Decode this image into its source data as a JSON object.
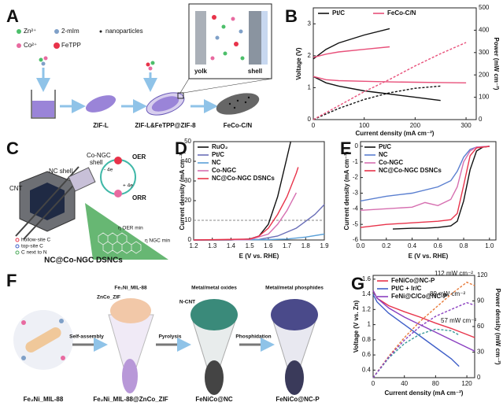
{
  "panel_labels": [
    "A",
    "B",
    "C",
    "D",
    "E",
    "F",
    "G"
  ],
  "panel_a": {
    "legend": [
      "Zn²⁺",
      "2-mIm",
      "nanoparticles",
      "Co²⁺",
      "FeTPP"
    ],
    "steps": [
      "ZIF-L",
      "ZIF-L&FeTPP@ZIF-8",
      "FeCo-C/N"
    ],
    "inset": [
      "yolk",
      "shell"
    ]
  },
  "panel_c": {
    "labels": [
      "Co-NGC",
      "shell",
      "NC shell",
      "CNT",
      "OER",
      "ORR",
      "- 4e",
      "+ 4e",
      "hollow-site C",
      "top-site C",
      "C next to N",
      "η OER min",
      "η NGC min"
    ],
    "title": "NC@Co-NGC DSNCs"
  },
  "panel_f": {
    "compounds": [
      "Fe₂Ni_MIL-88",
      "Fe₂Ni_MIL-88@ZnCo_ZIF",
      "FeNiCo@NC",
      "FeNiCo@NC-P"
    ],
    "steps": [
      "Self-assembly",
      "Pyrolysis",
      "Phosphidation"
    ],
    "parts": [
      "Fe₂Ni_MIL-88",
      "ZnCo_ZIF",
      "N-CNT",
      "Metal/metal oxides",
      "Metal/metal phosphides"
    ]
  },
  "chart_data": [
    {
      "type": "line",
      "xlabel": "Current density (mA cm⁻²)",
      "ylabel": "Voltage (V)",
      "y2label": "Power (mW cm⁻²)",
      "xlim": [
        0,
        320
      ],
      "xticks": [
        0,
        100,
        200,
        300
      ],
      "ylim": [
        0,
        3.5
      ],
      "yticks": [
        0,
        1,
        2,
        3
      ],
      "y2lim": [
        0,
        500
      ],
      "y2ticks": [
        0,
        100,
        200,
        300,
        400,
        500
      ],
      "legend": "top",
      "series": [
        {
          "name": "Pt/C",
          "color": "#111111",
          "dash": false,
          "x": [
            0,
            25,
            50,
            100,
            150,
            200,
            250
          ],
          "values": [
            1.35,
            1.15,
            1.05,
            0.9,
            0.8,
            0.7,
            0.6
          ]
        },
        {
          "name": "FeCo-C/N",
          "color": "#e8507a",
          "dash": false,
          "x": [
            0,
            25,
            50,
            100,
            150,
            200,
            250,
            300
          ],
          "values": [
            1.35,
            1.25,
            1.22,
            1.2,
            1.18,
            1.17,
            1.16,
            1.15
          ]
        },
        {
          "color": "#111111",
          "dash": false,
          "x": [
            0,
            25,
            50,
            100,
            150
          ],
          "values": [
            1.9,
            2.2,
            2.4,
            2.65,
            2.85
          ]
        },
        {
          "color": "#e8507a",
          "dash": false,
          "x": [
            0,
            25,
            50,
            100,
            150
          ],
          "values": [
            1.95,
            2.05,
            2.12,
            2.2,
            2.28
          ]
        },
        {
          "color": "#111111",
          "dash": true,
          "axis": "y2",
          "x": [
            0,
            50,
            100,
            150,
            200,
            250
          ],
          "values": [
            0,
            50,
            90,
            120,
            140,
            150
          ]
        },
        {
          "color": "#e8507a",
          "dash": true,
          "axis": "y2",
          "x": [
            0,
            50,
            100,
            150,
            200,
            250,
            300
          ],
          "values": [
            0,
            62,
            125,
            180,
            240,
            295,
            345
          ]
        }
      ]
    },
    {
      "type": "line",
      "xlabel": "E (V vs. RHE)",
      "ylabel": "Current density (mA cm⁻²)",
      "xlim": [
        1.2,
        1.9
      ],
      "xticks": [
        1.2,
        1.3,
        1.4,
        1.5,
        1.6,
        1.7,
        1.8,
        1.9
      ],
      "ylim": [
        0,
        50
      ],
      "yticks": [
        0,
        10,
        20,
        30,
        40,
        50
      ],
      "hline": 10,
      "legend": "upper left",
      "series": [
        {
          "name": "RuO₂",
          "color": "#111111",
          "dash": false,
          "x": [
            1.2,
            1.4,
            1.5,
            1.55,
            1.6,
            1.65,
            1.7,
            1.72
          ],
          "values": [
            0,
            0,
            0.5,
            2,
            8,
            22,
            42,
            50
          ]
        },
        {
          "name": "Pt/C",
          "color": "#6a6fb8",
          "dash": false,
          "x": [
            1.2,
            1.55,
            1.65,
            1.75,
            1.85,
            1.9
          ],
          "values": [
            0,
            0.3,
            2,
            6,
            13,
            18
          ]
        },
        {
          "name": "NC",
          "color": "#5aa0d8",
          "dash": false,
          "x": [
            1.2,
            1.6,
            1.7,
            1.8,
            1.9
          ],
          "values": [
            0,
            0.2,
            0.5,
            1.5,
            3
          ]
        },
        {
          "name": "Co-NGC",
          "color": "#d66fb0",
          "dash": false,
          "x": [
            1.2,
            1.5,
            1.6,
            1.65,
            1.7,
            1.75
          ],
          "values": [
            0,
            0.2,
            3,
            8,
            15,
            24
          ]
        },
        {
          "name": "NC@Co-NGC DSNCs",
          "color": "#e8334a",
          "dash": false,
          "x": [
            1.2,
            1.5,
            1.55,
            1.6,
            1.65,
            1.7,
            1.75,
            1.76
          ],
          "values": [
            0,
            0.5,
            2,
            6,
            13,
            22,
            34,
            37
          ]
        }
      ]
    },
    {
      "type": "line",
      "xlabel": "E (V vs. RHE)",
      "ylabel": "Current density (mA cm⁻²)",
      "xlim": [
        0,
        1.05
      ],
      "xticks": [
        {
          "value": 0,
          "label": "0.0"
        },
        0.2,
        0.4,
        0.6,
        0.8,
        {
          "value": 1,
          "label": "1.0"
        }
      ],
      "ylim": [
        -6,
        0.3
      ],
      "yticks": [
        0,
        -1,
        -2,
        -3,
        -4,
        -5,
        -6
      ],
      "legend": "upper left",
      "series": [
        {
          "name": "Pt/C",
          "color": "#111111",
          "dash": false,
          "x": [
            0.25,
            0.4,
            0.5,
            0.6,
            0.7,
            0.75,
            0.8,
            0.85,
            0.9,
            0.95,
            1.0
          ],
          "values": [
            -5.3,
            -5.25,
            -5.25,
            -5.2,
            -5.1,
            -4.8,
            -3.5,
            -1.5,
            -0.3,
            -0.05,
            0
          ]
        },
        {
          "name": "NC",
          "color": "#5a7fd0",
          "dash": false,
          "x": [
            0,
            0.2,
            0.4,
            0.6,
            0.7,
            0.75,
            0.8,
            0.85,
            0.9,
            1.0
          ],
          "values": [
            -3.5,
            -3.2,
            -3.0,
            -2.6,
            -2.2,
            -1.6,
            -0.7,
            -0.2,
            -0.05,
            0
          ]
        },
        {
          "name": "Co-NGC",
          "color": "#d66fb0",
          "dash": false,
          "x": [
            0,
            0.2,
            0.4,
            0.5,
            0.6,
            0.7,
            0.75,
            0.8,
            0.85,
            0.9,
            1.0
          ],
          "values": [
            -4.1,
            -4.0,
            -3.9,
            -3.6,
            -3.8,
            -3.4,
            -2.6,
            -1,
            -0.3,
            -0.05,
            0
          ]
        },
        {
          "name": "NC@Co-NGC DSNCs",
          "color": "#e8334a",
          "dash": false,
          "x": [
            0,
            0.2,
            0.4,
            0.6,
            0.7,
            0.75,
            0.8,
            0.85,
            0.9,
            1.0
          ],
          "values": [
            -5.2,
            -5.0,
            -4.9,
            -4.8,
            -4.7,
            -4.3,
            -2.5,
            -0.6,
            -0.1,
            0
          ]
        }
      ]
    },
    {
      "type": "line",
      "xlabel": "Current density (mA cm⁻²)",
      "ylabel": "Voltage (V vs. Zn)",
      "y2label": "Power density (mW cm⁻²)",
      "xlim": [
        0,
        130
      ],
      "xticks": [
        0,
        40,
        80,
        120
      ],
      "ylim": [
        0.3,
        1.65
      ],
      "yticks": [
        0.4,
        0.6,
        0.8,
        1,
        1.2,
        1.4,
        1.6
      ],
      "y2lim": [
        0,
        120
      ],
      "y2ticks": [
        0,
        30,
        60,
        90,
        120
      ],
      "legend": "upper left",
      "annotations": [
        "112 mW cm⁻²",
        "89 mW cm⁻²",
        "57 mW cm⁻²"
      ],
      "series": [
        {
          "name": "FeNiCo@NC-P",
          "color": "#e8334a",
          "dash": false,
          "x": [
            0,
            5,
            20,
            40,
            60,
            80,
            100,
            120,
            130
          ],
          "values": [
            1.45,
            1.35,
            1.25,
            1.17,
            1.1,
            1.02,
            0.95,
            0.87,
            0.83
          ]
        },
        {
          "name": "Pt/C + Ir/C",
          "color": "#3f5fc8",
          "dash": false,
          "x": [
            0,
            5,
            20,
            40,
            60,
            80,
            100,
            110
          ],
          "values": [
            1.4,
            1.3,
            1.15,
            1.0,
            0.85,
            0.7,
            0.55,
            0.45
          ]
        },
        {
          "name": "FeNi@C/Co@NC-P",
          "color": "#8a3fc0",
          "dash": false,
          "x": [
            0,
            5,
            20,
            40,
            60,
            80,
            100,
            120,
            130
          ],
          "values": [
            1.45,
            1.35,
            1.22,
            1.1,
            1.0,
            0.9,
            0.8,
            0.7,
            0.65
          ]
        },
        {
          "color": "#e87a3a",
          "dash": true,
          "axis": "y2",
          "x": [
            0,
            20,
            40,
            60,
            80,
            100,
            120,
            130
          ],
          "values": [
            0,
            25,
            47,
            66,
            82,
            98,
            112,
            108
          ]
        },
        {
          "color": "#3a9a9a",
          "dash": true,
          "axis": "y2",
          "x": [
            0,
            20,
            40,
            60,
            80,
            100,
            110
          ],
          "values": [
            0,
            23,
            40,
            51,
            57,
            55,
            50
          ]
        },
        {
          "color": "#8a3fc0",
          "dash": true,
          "axis": "y2",
          "x": [
            0,
            20,
            40,
            60,
            80,
            100,
            120,
            130
          ],
          "values": [
            0,
            24,
            44,
            60,
            72,
            80,
            88,
            85
          ]
        }
      ]
    }
  ]
}
